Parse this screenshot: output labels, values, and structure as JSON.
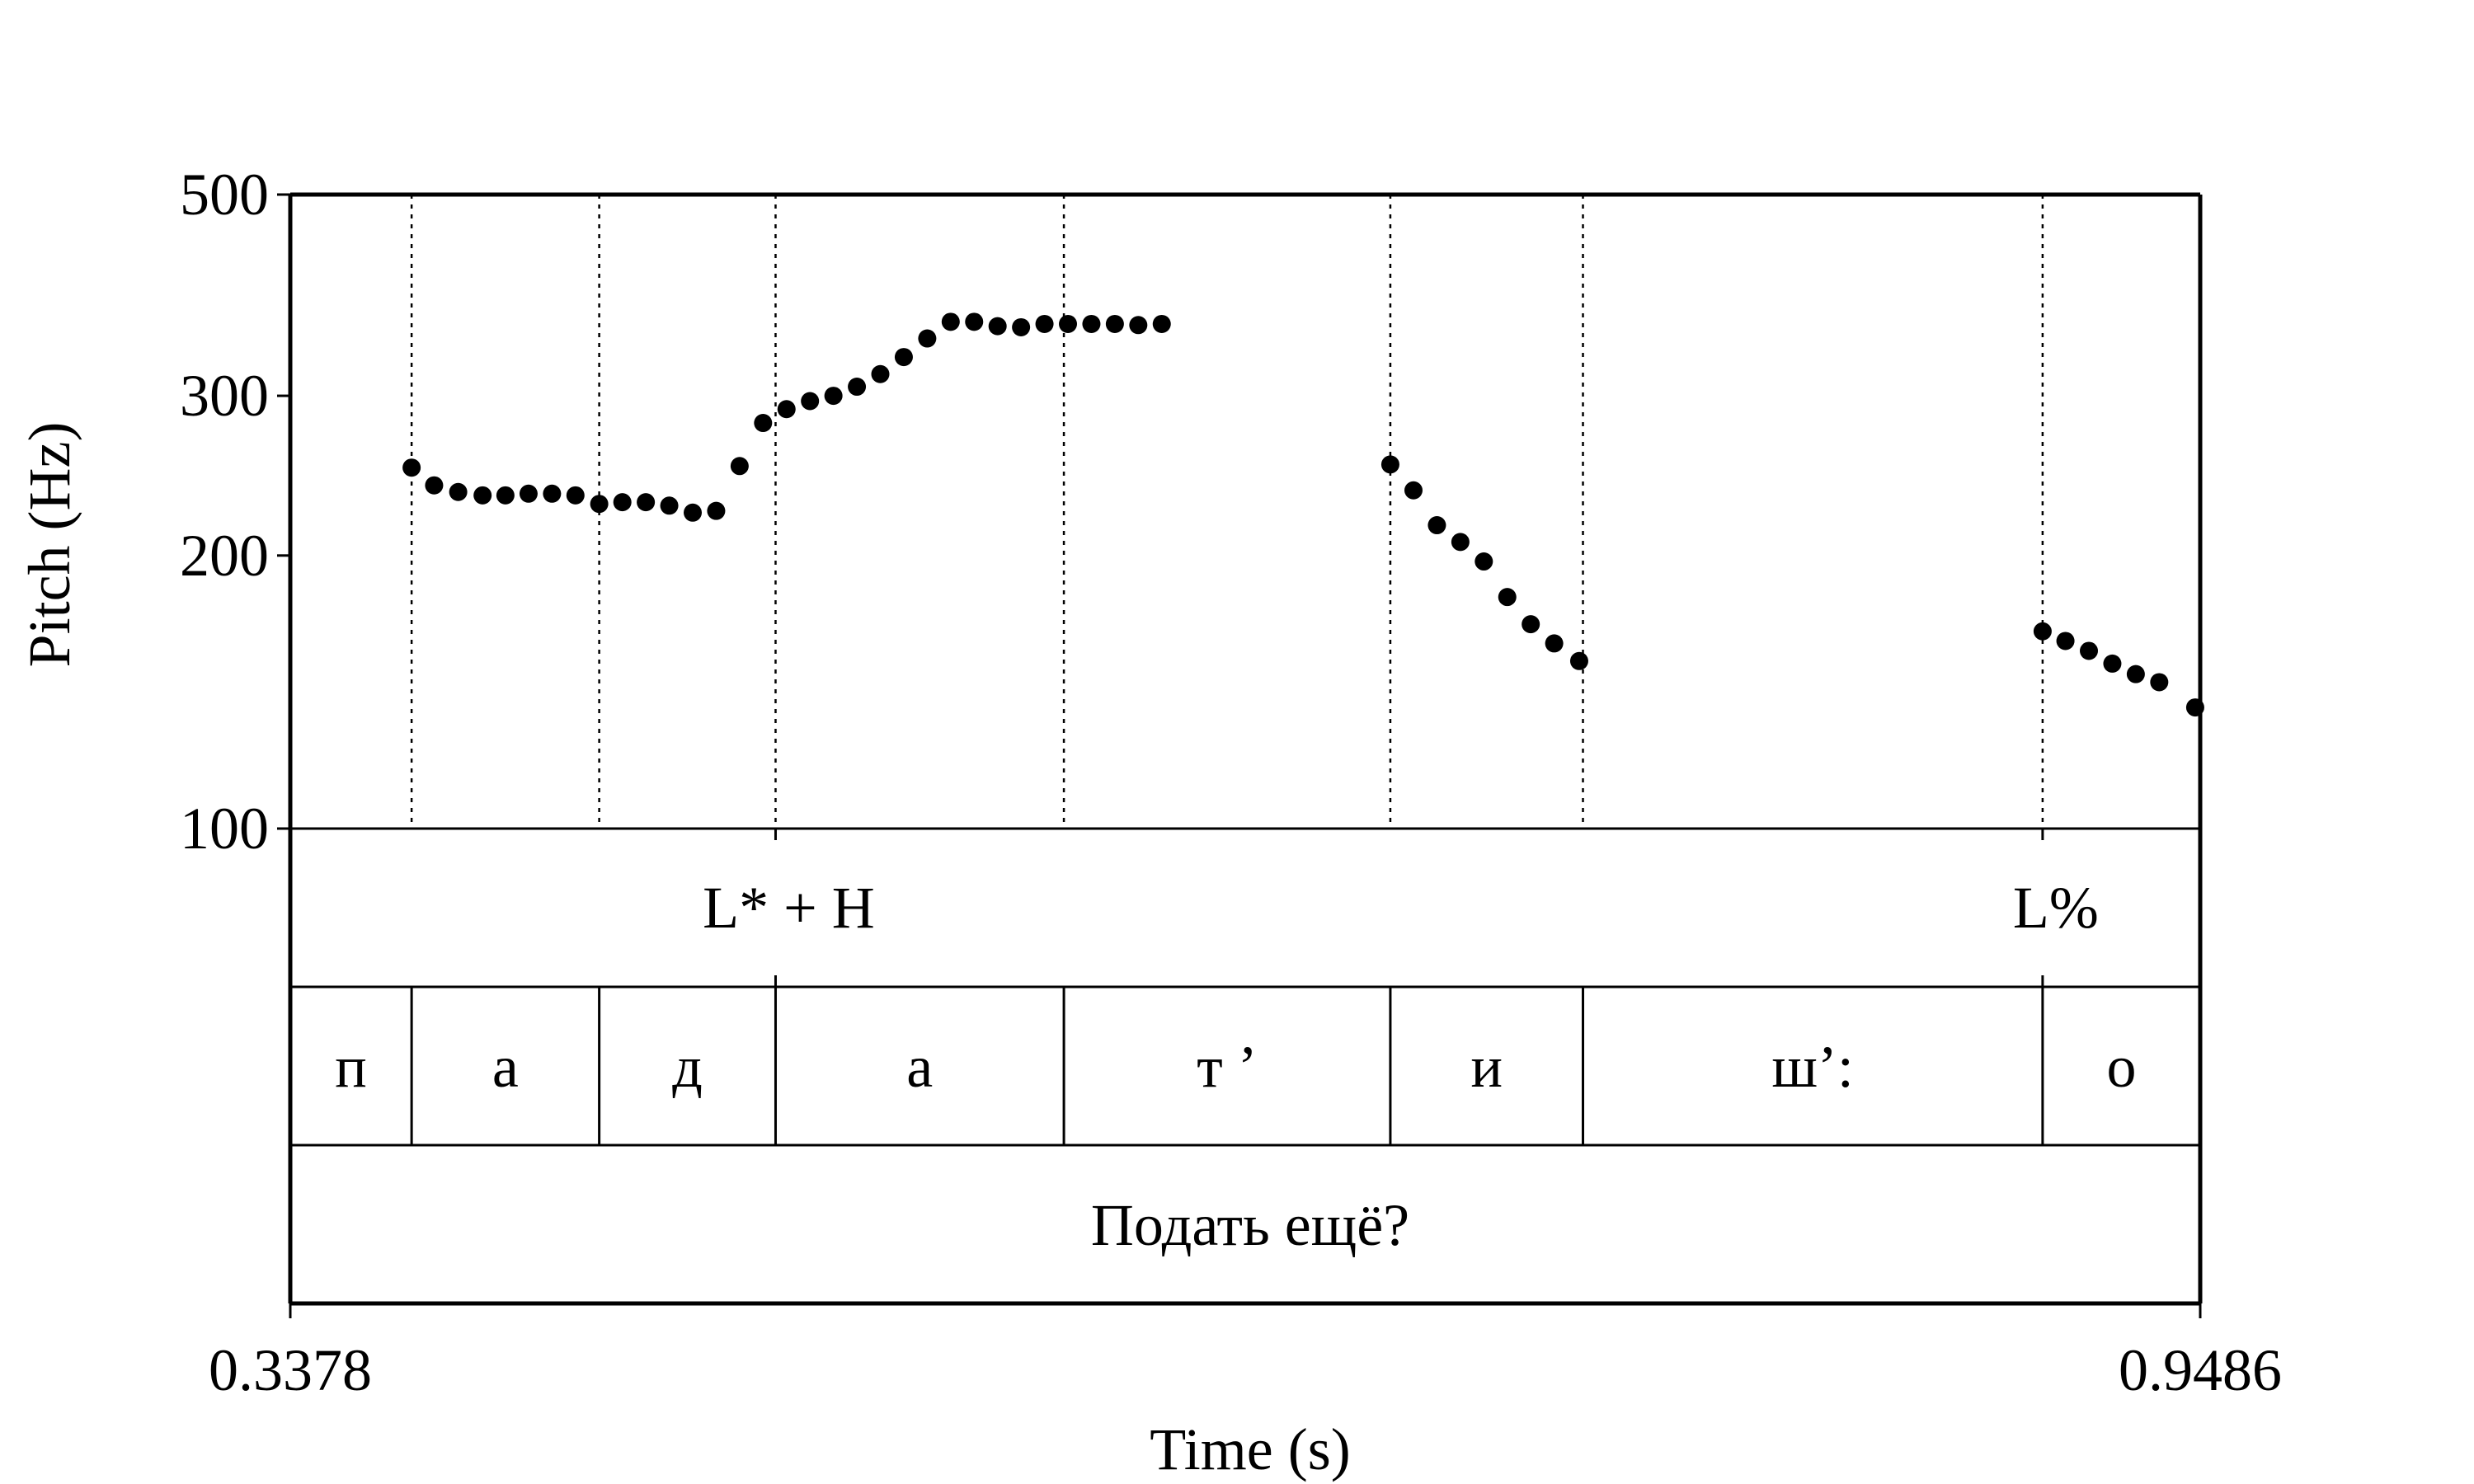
{
  "chart_data": {
    "type": "scatter",
    "xlabel": "Time (s)",
    "ylabel": "Pitch (Hz)",
    "xlim": [
      0.3378,
      0.9486
    ],
    "ylim": [
      100,
      500
    ],
    "y_scale": "log",
    "grid": false,
    "yticks": [
      100,
      200,
      300,
      500
    ],
    "xtick_labels": [
      "0.3378",
      "0.9486"
    ],
    "boundaries": [
      0.3766,
      0.4366,
      0.493,
      0.5852,
      0.6896,
      0.7512,
      0.8982
    ],
    "tones": [
      {
        "label": "L* + H",
        "time": 0.493,
        "anchor": "middle"
      },
      {
        "label": "L%",
        "time": 0.8982,
        "anchor": "middle"
      }
    ],
    "segments": [
      "п",
      "а",
      "д",
      "а",
      "т ’",
      "и",
      "ш’:",
      "о"
    ],
    "sentence": "Подать ещё?",
    "points": [
      {
        "t": 0.3766,
        "hz": 250
      },
      {
        "t": 0.3838,
        "hz": 239
      },
      {
        "t": 0.3915,
        "hz": 235
      },
      {
        "t": 0.3993,
        "hz": 233
      },
      {
        "t": 0.4066,
        "hz": 233
      },
      {
        "t": 0.414,
        "hz": 234
      },
      {
        "t": 0.4215,
        "hz": 234
      },
      {
        "t": 0.429,
        "hz": 233
      },
      {
        "t": 0.4366,
        "hz": 228
      },
      {
        "t": 0.444,
        "hz": 229
      },
      {
        "t": 0.4515,
        "hz": 229
      },
      {
        "t": 0.459,
        "hz": 227
      },
      {
        "t": 0.4665,
        "hz": 223
      },
      {
        "t": 0.474,
        "hz": 224
      },
      {
        "t": 0.4815,
        "hz": 251
      },
      {
        "t": 0.489,
        "hz": 280
      },
      {
        "t": 0.4965,
        "hz": 290
      },
      {
        "t": 0.504,
        "hz": 296
      },
      {
        "t": 0.5115,
        "hz": 300
      },
      {
        "t": 0.519,
        "hz": 307
      },
      {
        "t": 0.5265,
        "hz": 317
      },
      {
        "t": 0.534,
        "hz": 331
      },
      {
        "t": 0.5415,
        "hz": 347
      },
      {
        "t": 0.549,
        "hz": 362
      },
      {
        "t": 0.5565,
        "hz": 362
      },
      {
        "t": 0.564,
        "hz": 358
      },
      {
        "t": 0.5715,
        "hz": 357
      },
      {
        "t": 0.579,
        "hz": 360
      },
      {
        "t": 0.5865,
        "hz": 360
      },
      {
        "t": 0.594,
        "hz": 360
      },
      {
        "t": 0.6015,
        "hz": 360
      },
      {
        "t": 0.609,
        "hz": 359
      },
      {
        "t": 0.6165,
        "hz": 360
      },
      {
        "t": 0.6896,
        "hz": 252
      },
      {
        "t": 0.697,
        "hz": 236
      },
      {
        "t": 0.7045,
        "hz": 216
      },
      {
        "t": 0.712,
        "hz": 207
      },
      {
        "t": 0.7195,
        "hz": 197
      },
      {
        "t": 0.727,
        "hz": 180
      },
      {
        "t": 0.7345,
        "hz": 168
      },
      {
        "t": 0.742,
        "hz": 160
      },
      {
        "t": 0.75,
        "hz": 153
      },
      {
        "t": 0.8982,
        "hz": 165
      },
      {
        "t": 0.9055,
        "hz": 161
      },
      {
        "t": 0.913,
        "hz": 157
      },
      {
        "t": 0.9205,
        "hz": 152
      },
      {
        "t": 0.928,
        "hz": 148
      },
      {
        "t": 0.9355,
        "hz": 145
      },
      {
        "t": 0.947,
        "hz": 136
      }
    ]
  }
}
